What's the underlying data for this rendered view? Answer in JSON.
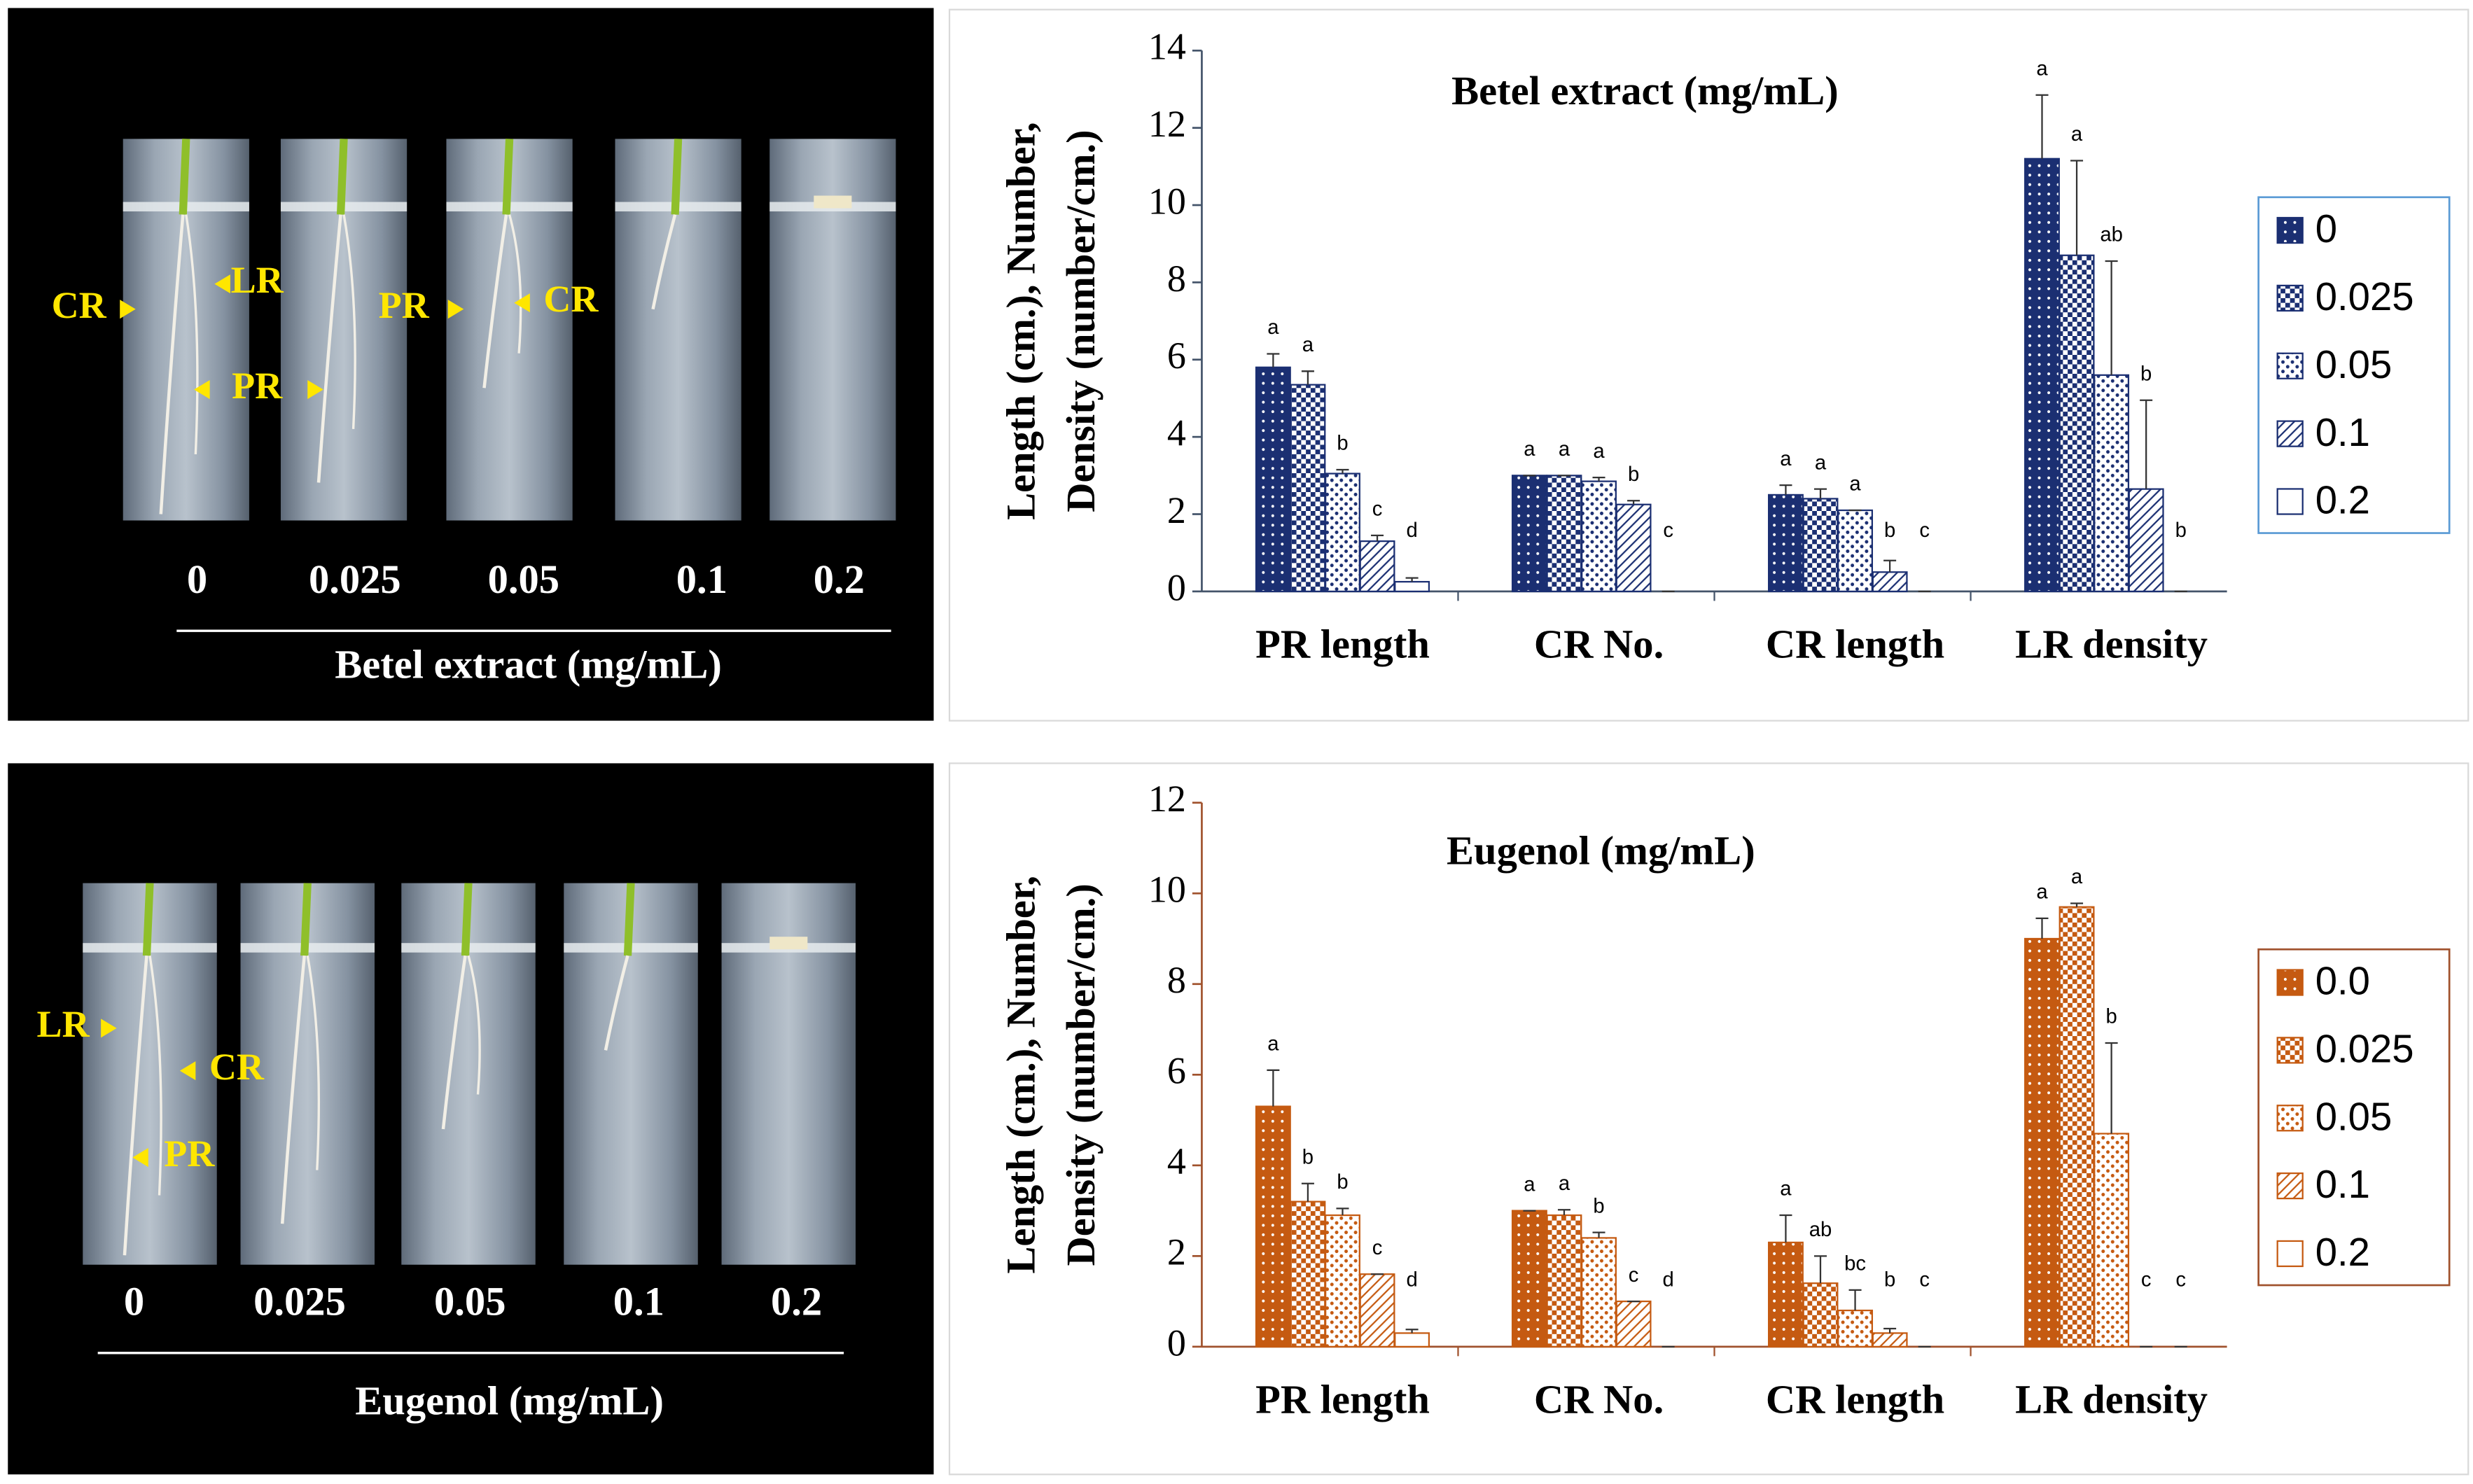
{
  "chart_data": [
    {
      "type": "bar",
      "title": "Betel extract (mg/mL)",
      "ylabel_lines": [
        "Length (cm.), Number,",
        "Density (number/cm.)"
      ],
      "categories": [
        "PR length",
        "CR No.",
        "CR length",
        "LR density"
      ],
      "ylim": [
        0,
        14
      ],
      "yticks": [
        0,
        2,
        4,
        6,
        8,
        10,
        12,
        14
      ],
      "series": [
        {
          "name": "0",
          "color": "#1b2f72",
          "values": [
            5.8,
            3.0,
            2.5,
            11.2
          ],
          "errors": [
            0.35,
            0,
            0.25,
            1.65
          ],
          "letters": [
            "a",
            "a",
            "a",
            "a"
          ]
        },
        {
          "name": "0.025",
          "color": "#1b2f72",
          "values": [
            5.35,
            3.0,
            2.4,
            8.7
          ],
          "errors": [
            0.35,
            0,
            0.25,
            2.45
          ],
          "letters": [
            "a",
            "a",
            "a",
            "a"
          ]
        },
        {
          "name": "0.05",
          "color": "#1b2f72",
          "values": [
            3.05,
            2.85,
            2.1,
            5.6
          ],
          "errors": [
            0.1,
            0.1,
            0,
            2.95
          ],
          "letters": [
            "b",
            "a",
            "a",
            "ab"
          ]
        },
        {
          "name": "0.1",
          "color": "#1b2f72",
          "values": [
            1.3,
            2.25,
            0.5,
            2.65
          ],
          "errors": [
            0.15,
            0.1,
            0.3,
            2.3
          ],
          "letters": [
            "c",
            "b",
            "b",
            "b"
          ]
        },
        {
          "name": "0.2",
          "color": "#1b2f72",
          "values": [
            0.25,
            0,
            0,
            0
          ],
          "errors": [
            0.1,
            0,
            0,
            0
          ],
          "letters": [
            "d",
            "c",
            "c",
            "b"
          ]
        }
      ]
    },
    {
      "type": "bar",
      "title": "Eugenol (mg/mL)",
      "ylabel_lines": [
        "Length (cm.), Number,",
        "Density (number/cm.)"
      ],
      "categories": [
        "PR length",
        "CR No.",
        "CR length",
        "LR density"
      ],
      "ylim": [
        0,
        12
      ],
      "yticks": [
        0,
        2,
        4,
        6,
        8,
        10,
        12
      ],
      "series": [
        {
          "name": "0.0",
          "color": "#c55a11",
          "values": [
            5.3,
            3.0,
            2.3,
            9.0
          ],
          "errors": [
            0.8,
            0,
            0.6,
            0.45
          ],
          "letters": [
            "a",
            "a",
            "a",
            "a"
          ]
        },
        {
          "name": "0.025",
          "color": "#c55a11",
          "values": [
            3.2,
            2.9,
            1.4,
            9.7
          ],
          "errors": [
            0.4,
            0.12,
            0.6,
            0.08
          ],
          "letters": [
            "b",
            "a",
            "ab",
            "a"
          ]
        },
        {
          "name": "0.05",
          "color": "#c55a11",
          "values": [
            2.9,
            2.4,
            0.8,
            4.7
          ],
          "errors": [
            0.15,
            0.12,
            0.45,
            2.0
          ],
          "letters": [
            "b",
            "b",
            "bc",
            "b"
          ]
        },
        {
          "name": "0.1",
          "color": "#c55a11",
          "values": [
            1.6,
            1.0,
            0.3,
            0
          ],
          "errors": [
            0,
            0,
            0.1,
            0
          ],
          "letters": [
            "c",
            "c",
            "b",
            "c"
          ]
        },
        {
          "name": "0.2",
          "color": "#c55a11",
          "values": [
            0.3,
            0,
            0,
            0
          ],
          "errors": [
            0.08,
            0,
            0,
            0
          ],
          "letters": [
            "d",
            "d",
            "c",
            "c"
          ]
        }
      ]
    }
  ],
  "photo_panels": [
    {
      "markers": [
        "CR",
        "LR",
        "PR",
        "PR",
        "CR"
      ],
      "concentrations": [
        "0",
        "0.025",
        "0.05",
        "0.1",
        "0.2"
      ],
      "caption": "Betel extract (mg/mL)"
    },
    {
      "markers": [
        "LR",
        "CR",
        "PR"
      ],
      "concentrations": [
        "0",
        "0.025",
        "0.05",
        "0.1",
        "0.2"
      ],
      "caption": "Eugenol (mg/mL)"
    }
  ]
}
